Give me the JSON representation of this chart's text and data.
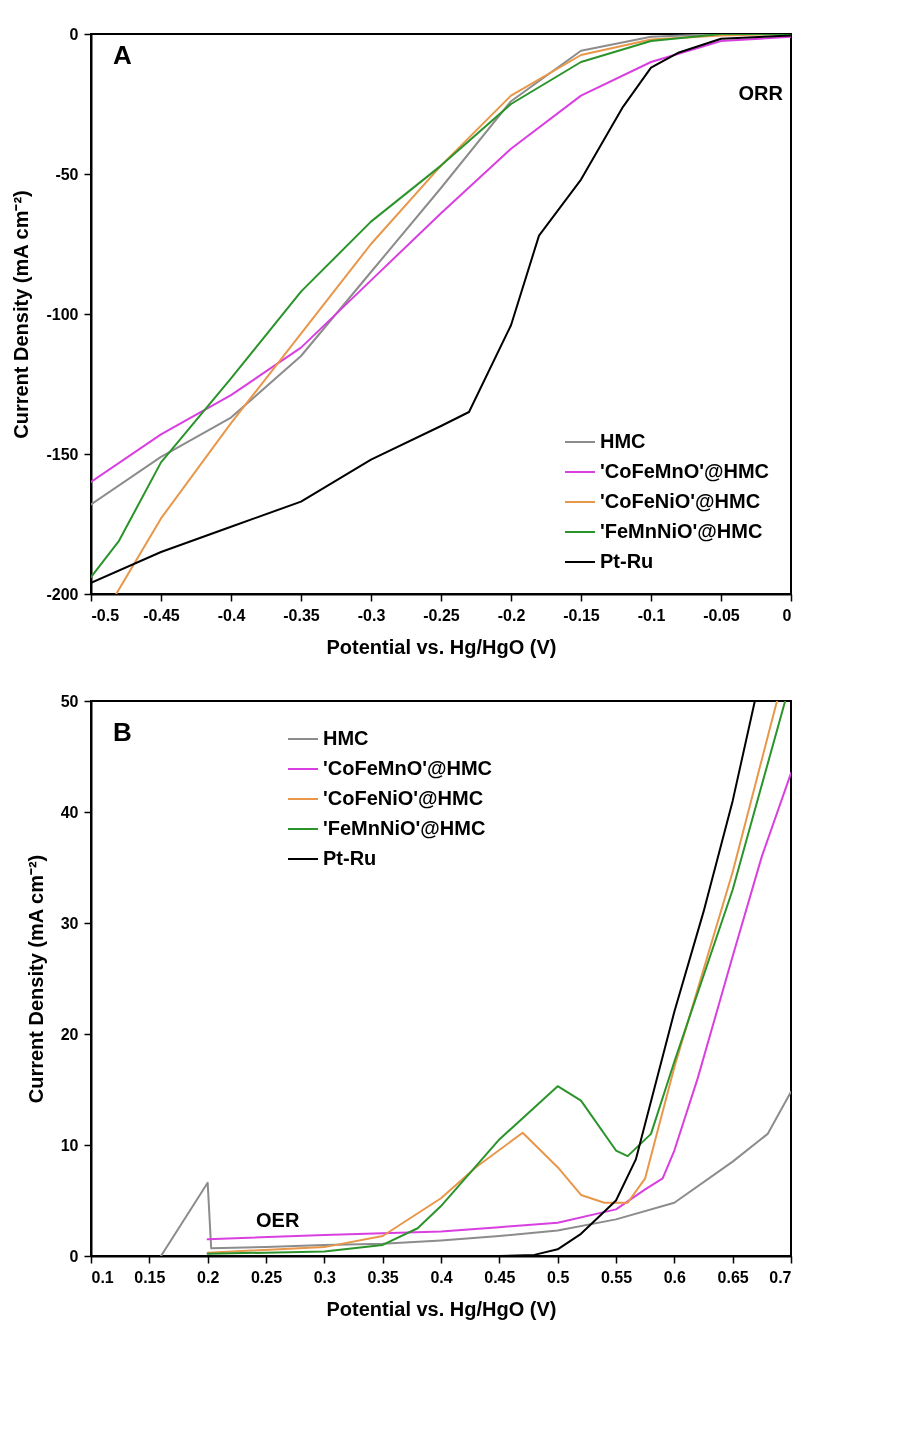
{
  "chart_data": [
    {
      "type": "line",
      "xlabel": "Potential vs. Hg/HgO (V)",
      "ylabel": "Current Density (mA cm⁻²)",
      "annotations": [
        "A",
        "ORR"
      ],
      "xlim": [
        -0.5,
        0
      ],
      "xticks": [
        -0.5,
        -0.45,
        -0.4,
        -0.35,
        -0.3,
        -0.25,
        -0.2,
        -0.15,
        -0.1,
        -0.05,
        0
      ],
      "ylim": [
        -200,
        0
      ],
      "yticks": [
        -200,
        -150,
        -100,
        -50,
        0
      ],
      "grid": false,
      "legend": "bottom right",
      "line_style": "solid",
      "series": [
        {
          "name": "HMC",
          "color": "#8c8c8c",
          "x": [
            -0.5,
            -0.45,
            -0.4,
            -0.35,
            -0.3,
            -0.25,
            -0.2,
            -0.15,
            -0.1,
            -0.05,
            0
          ],
          "values": [
            -168,
            -151,
            -137,
            -115,
            -85,
            -55,
            -24,
            -6,
            -1,
            0,
            0
          ]
        },
        {
          "name": "'CoFeMnO'@HMC",
          "color": "#d93fe0",
          "x": [
            -0.5,
            -0.45,
            -0.4,
            -0.35,
            -0.3,
            -0.25,
            -0.2,
            -0.15,
            -0.1,
            -0.05,
            0
          ],
          "values": [
            -160,
            -143,
            -129,
            -112,
            -88,
            -64,
            -41,
            -22,
            -10,
            -2.5,
            -1
          ]
        },
        {
          "name": "'CoFeNiO'@HMC",
          "color": "#e8974a",
          "x": [
            -0.482,
            -0.45,
            -0.4,
            -0.35,
            -0.3,
            -0.25,
            -0.2,
            -0.15,
            -0.1,
            -0.05,
            0
          ],
          "values": [
            -200,
            -173,
            -139,
            -107,
            -75,
            -47,
            -22,
            -7.5,
            -2,
            -0.5,
            0
          ]
        },
        {
          "name": "'FeMnNiO'@HMC",
          "color": "#2a942a",
          "x": [
            -0.5,
            -0.48,
            -0.45,
            -0.4,
            -0.35,
            -0.3,
            -0.25,
            -0.2,
            -0.15,
            -0.1,
            -0.05,
            0
          ],
          "values": [
            -194,
            -181,
            -153,
            -123,
            -92,
            -67,
            -47,
            -25,
            -10,
            -2.5,
            0,
            0
          ]
        },
        {
          "name": "Pt-Ru",
          "color": "#000000",
          "x": [
            -0.5,
            -0.45,
            -0.4,
            -0.35,
            -0.3,
            -0.25,
            -0.23,
            -0.2,
            -0.18,
            -0.15,
            -0.12,
            -0.1,
            -0.08,
            -0.05,
            0
          ],
          "values": [
            -196,
            -185,
            -176,
            -167,
            -152,
            -140,
            -135,
            -104,
            -72,
            -52,
            -26,
            -12,
            -6.6,
            -1.7,
            -0.5
          ]
        }
      ]
    },
    {
      "type": "line",
      "xlabel": "Potential vs. Hg/HgO (V)",
      "ylabel": "Current Density (mA cm⁻²)",
      "annotations": [
        "B",
        "OER"
      ],
      "xlim": [
        0.1,
        0.7
      ],
      "xticks": [
        0.1,
        0.15,
        0.2,
        0.25,
        0.3,
        0.35,
        0.4,
        0.45,
        0.5,
        0.55,
        0.6,
        0.65,
        0.7
      ],
      "ylim": [
        0,
        50
      ],
      "yticks": [
        0,
        10,
        20,
        30,
        40,
        50
      ],
      "grid": false,
      "legend": "top left",
      "line_style": "solid",
      "series": [
        {
          "name": "HMC",
          "color": "#8c8c8c",
          "x": [
            0.16,
            0.2,
            0.203,
            0.25,
            0.3,
            0.35,
            0.4,
            0.45,
            0.5,
            0.55,
            0.6,
            0.65,
            0.68,
            0.7
          ],
          "values": [
            0,
            6.6,
            0.7,
            0.8,
            1.0,
            1.1,
            1.4,
            1.8,
            2.3,
            3.3,
            4.8,
            8.5,
            11,
            14.8
          ]
        },
        {
          "name": "'CoFeMnO'@HMC",
          "color": "#d93fe0",
          "x": [
            0.2,
            0.3,
            0.4,
            0.45,
            0.5,
            0.55,
            0.575,
            0.59,
            0.6,
            0.62,
            0.65,
            0.675,
            0.7
          ],
          "values": [
            1.5,
            1.9,
            2.2,
            2.6,
            3.0,
            4.2,
            6,
            7,
            9.5,
            16,
            27,
            36,
            43.5
          ]
        },
        {
          "name": "'CoFeNiO'@HMC",
          "color": "#e8974a",
          "x": [
            0.2,
            0.3,
            0.35,
            0.4,
            0.43,
            0.47,
            0.5,
            0.52,
            0.54,
            0.56,
            0.575,
            0.6,
            0.65,
            0.688
          ],
          "values": [
            0.3,
            0.8,
            1.8,
            5.2,
            8,
            11.1,
            8,
            5.5,
            4.8,
            4.8,
            7,
            17,
            34.6,
            50
          ]
        },
        {
          "name": "'FeMnNiO'@HMC",
          "color": "#2a942a",
          "x": [
            0.2,
            0.3,
            0.35,
            0.38,
            0.4,
            0.45,
            0.5,
            0.52,
            0.55,
            0.56,
            0.58,
            0.6,
            0.65,
            0.695
          ],
          "values": [
            0.2,
            0.4,
            1,
            2.5,
            4.5,
            10.5,
            15.3,
            14,
            9.5,
            9,
            11,
            17.5,
            33,
            50
          ]
        },
        {
          "name": "Pt-Ru",
          "color": "#000000",
          "x": [
            0.2,
            0.45,
            0.48,
            0.5,
            0.52,
            0.55,
            0.567,
            0.6,
            0.625,
            0.65,
            0.669
          ],
          "values": [
            0,
            0,
            0.1,
            0.6,
            2,
            5,
            8.7,
            22,
            31,
            41,
            50
          ]
        }
      ]
    }
  ]
}
